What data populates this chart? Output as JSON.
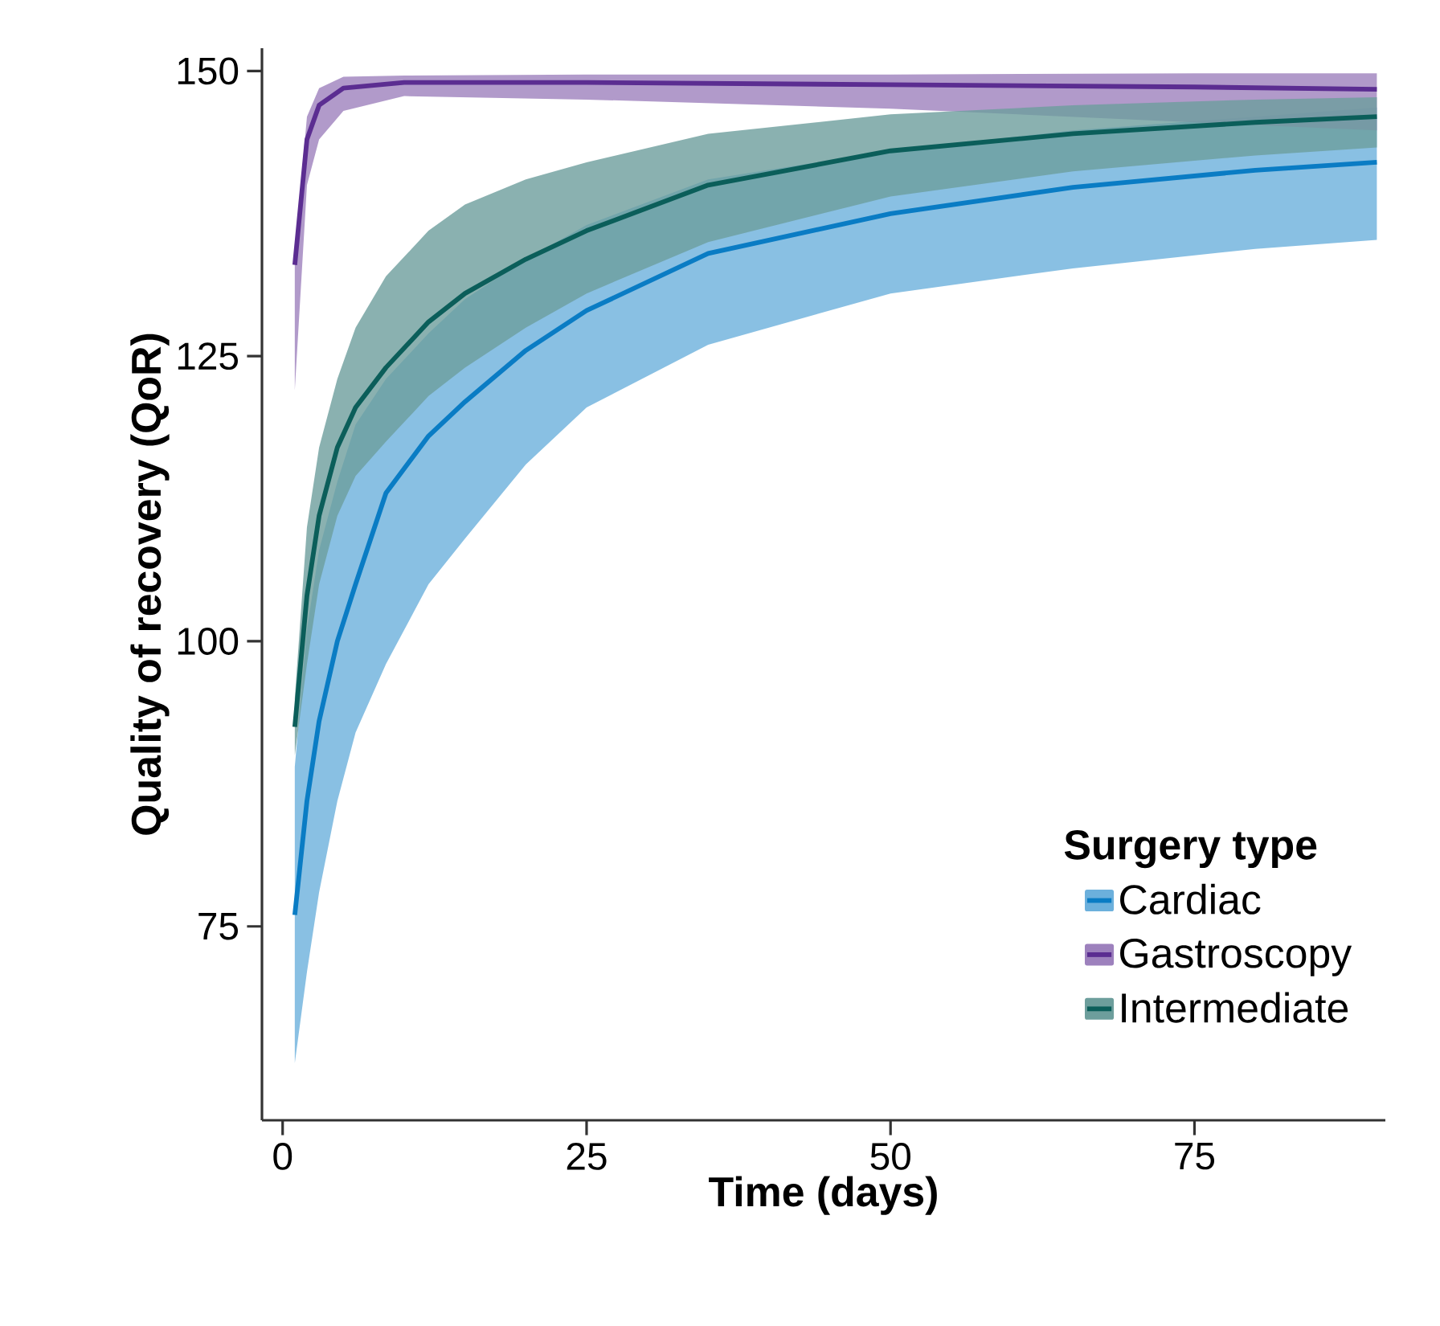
{
  "chart_data": {
    "type": "line",
    "xlabel": "Time (days)",
    "ylabel": "Quality of recovery (QoR)",
    "legend_title": "Surgery type",
    "xlim": [
      -1.7,
      90.7
    ],
    "ylim": [
      58,
      152
    ],
    "xticks": [
      0,
      25,
      50,
      75
    ],
    "yticks": [
      75,
      100,
      125,
      150
    ],
    "grid": false,
    "legend": "bottom right",
    "marker": "none",
    "line_style": "solid",
    "series": [
      {
        "name": "Cardiac",
        "color": "#0a7cc4",
        "x": [
          1,
          2,
          3,
          4.5,
          6,
          8.5,
          12,
          15,
          20,
          25,
          35,
          50,
          65,
          80,
          90
        ],
        "values": [
          76,
          86,
          93,
          100,
          105,
          113,
          118,
          121,
          125.5,
          129,
          134,
          137.5,
          139.8,
          141.3,
          142
        ],
        "lower": [
          63,
          71,
          78,
          86,
          92,
          98,
          105,
          109,
          115.5,
          120.5,
          126,
          130.5,
          132.7,
          134.4,
          135.2
        ],
        "upper": [
          89,
          101,
          108,
          114,
          119,
          123,
          127,
          130,
          133.5,
          136.5,
          140.5,
          143,
          144.8,
          146,
          146.8
        ]
      },
      {
        "name": "Gastroscopy",
        "color": "#5b2d91",
        "x": [
          1,
          2,
          3,
          5,
          10,
          25,
          50,
          75,
          90
        ],
        "values": [
          133,
          144,
          147,
          148.5,
          149,
          149,
          148.8,
          148.6,
          148.4
        ],
        "lower": [
          122,
          140,
          144,
          146.5,
          147.8,
          147.5,
          146.7,
          145.5,
          144.8
        ],
        "upper": [
          134,
          146,
          148.5,
          149.5,
          149.6,
          149.7,
          149.7,
          149.8,
          149.8
        ]
      },
      {
        "name": "Intermediate",
        "color": "#0b5e5a",
        "x": [
          1,
          2,
          3,
          4.5,
          6,
          8.5,
          12,
          15,
          20,
          25,
          35,
          50,
          65,
          80,
          90
        ],
        "values": [
          92.5,
          104,
          111,
          117,
          120.5,
          124,
          128,
          130.5,
          133.5,
          136,
          140,
          143,
          144.5,
          145.5,
          146
        ],
        "lower": [
          90,
          98,
          105,
          111,
          114.5,
          117.5,
          121.5,
          124,
          127.5,
          130.5,
          135,
          139,
          141.2,
          142.6,
          143.3
        ],
        "upper": [
          95,
          110,
          117,
          123,
          127.5,
          132,
          136,
          138.3,
          140.5,
          142,
          144.5,
          146.2,
          147,
          147.5,
          147.7
        ]
      }
    ]
  }
}
